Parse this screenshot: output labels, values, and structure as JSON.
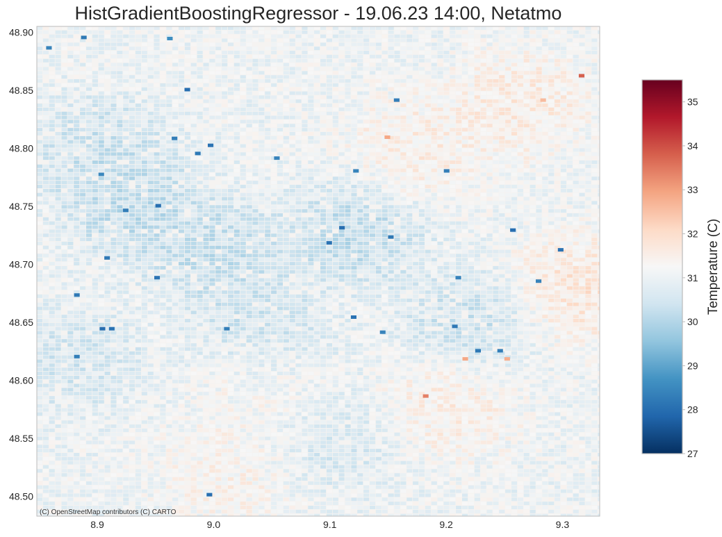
{
  "chart_data": {
    "type": "heatmap",
    "title": "HistGradientBoostingRegressor - 19.06.23 14:00, Netatmo",
    "xlabel": "",
    "ylabel": "",
    "xlim": [
      8.848,
      9.332
    ],
    "ylim": [
      48.483,
      48.905
    ],
    "x_ticks": [
      8.9,
      9.0,
      9.1,
      9.2,
      9.3
    ],
    "x_tick_labels": [
      "8.9",
      "9.0",
      "9.1",
      "9.2",
      "9.3"
    ],
    "y_ticks": [
      48.5,
      48.55,
      48.6,
      48.65,
      48.7,
      48.75,
      48.8,
      48.85,
      48.9
    ],
    "y_tick_labels": [
      "48.50",
      "48.55",
      "48.60",
      "48.65",
      "48.70",
      "48.75",
      "48.80",
      "48.85",
      "48.90"
    ],
    "grid_cell_deg": [
      0.0053,
      0.0035
    ],
    "value_range": [
      27,
      35.5
    ],
    "colormap": "RdBu_r",
    "colormap_stops": [
      "#053061",
      "#2166ac",
      "#4393c3",
      "#92c5de",
      "#d1e5f0",
      "#f7f7f7",
      "#fddbc7",
      "#f4a582",
      "#d6604d",
      "#b2182b",
      "#67001f"
    ],
    "background_value": 31,
    "regions": [
      {
        "name": "cool-west-north",
        "lon": 8.9,
        "lat": 48.8,
        "value": 30.2
      },
      {
        "name": "cool-west-mid",
        "lon": 8.93,
        "lat": 48.75,
        "value": 30.0
      },
      {
        "name": "cool-center-west",
        "lon": 9.0,
        "lat": 48.71,
        "value": 30.1
      },
      {
        "name": "cool-west-south",
        "lon": 8.88,
        "lat": 48.62,
        "value": 30.4
      },
      {
        "name": "cool-center",
        "lon": 9.12,
        "lat": 48.73,
        "value": 30.0
      },
      {
        "name": "cool-center-south",
        "lon": 9.04,
        "lat": 48.64,
        "value": 30.2
      },
      {
        "name": "cool-east-mid",
        "lon": 9.22,
        "lat": 48.65,
        "value": 30.2
      },
      {
        "name": "cool-south",
        "lon": 9.1,
        "lat": 48.55,
        "value": 30.5
      },
      {
        "name": "warm-east-north",
        "lon": 9.26,
        "lat": 48.84,
        "value": 31.8
      },
      {
        "name": "warm-east",
        "lon": 9.31,
        "lat": 48.68,
        "value": 32.0
      },
      {
        "name": "warm-center-north",
        "lon": 9.17,
        "lat": 48.8,
        "value": 31.7
      },
      {
        "name": "warm-valley",
        "lon": 9.04,
        "lat": 48.6,
        "value": 31.4
      },
      {
        "name": "warm-southeast",
        "lon": 9.2,
        "lat": 48.58,
        "value": 31.7
      },
      {
        "name": "warm-south",
        "lon": 9.01,
        "lat": 48.52,
        "value": 31.5
      }
    ],
    "hotspots": [
      {
        "lon": 8.886,
        "lat": 48.897,
        "value": 28.2
      },
      {
        "lon": 8.856,
        "lat": 48.888,
        "value": 28.4
      },
      {
        "lon": 8.96,
        "lat": 48.896,
        "value": 28.6
      },
      {
        "lon": 8.975,
        "lat": 48.852,
        "value": 28.0
      },
      {
        "lon": 8.964,
        "lat": 48.81,
        "value": 28.3
      },
      {
        "lon": 8.995,
        "lat": 48.804,
        "value": 28.1
      },
      {
        "lon": 8.984,
        "lat": 48.797,
        "value": 28.2
      },
      {
        "lon": 9.052,
        "lat": 48.793,
        "value": 28.4
      },
      {
        "lon": 8.901,
        "lat": 48.779,
        "value": 28.5
      },
      {
        "lon": 8.922,
        "lat": 48.748,
        "value": 28.3
      },
      {
        "lon": 8.95,
        "lat": 48.752,
        "value": 28.0
      },
      {
        "lon": 8.906,
        "lat": 48.707,
        "value": 28.2
      },
      {
        "lon": 8.949,
        "lat": 48.69,
        "value": 28.1
      },
      {
        "lon": 8.88,
        "lat": 48.675,
        "value": 28.2
      },
      {
        "lon": 8.902,
        "lat": 48.646,
        "value": 28.0
      },
      {
        "lon": 8.91,
        "lat": 48.646,
        "value": 28.1
      },
      {
        "lon": 9.009,
        "lat": 48.646,
        "value": 28.3
      },
      {
        "lon": 8.88,
        "lat": 48.622,
        "value": 28.3
      },
      {
        "lon": 9.108,
        "lat": 48.733,
        "value": 28.0
      },
      {
        "lon": 9.097,
        "lat": 48.72,
        "value": 28.1
      },
      {
        "lon": 9.118,
        "lat": 48.656,
        "value": 28.1
      },
      {
        "lon": 9.143,
        "lat": 48.643,
        "value": 28.4
      },
      {
        "lon": 9.15,
        "lat": 48.725,
        "value": 28.2
      },
      {
        "lon": 9.155,
        "lat": 48.843,
        "value": 28.3
      },
      {
        "lon": 9.12,
        "lat": 48.782,
        "value": 28.4
      },
      {
        "lon": 9.198,
        "lat": 48.782,
        "value": 28.3
      },
      {
        "lon": 9.208,
        "lat": 48.69,
        "value": 28.4
      },
      {
        "lon": 9.205,
        "lat": 48.648,
        "value": 28.2
      },
      {
        "lon": 9.225,
        "lat": 48.627,
        "value": 28.2
      },
      {
        "lon": 9.244,
        "lat": 48.627,
        "value": 28.3
      },
      {
        "lon": 9.255,
        "lat": 48.731,
        "value": 28.0
      },
      {
        "lon": 9.277,
        "lat": 48.687,
        "value": 28.4
      },
      {
        "lon": 9.296,
        "lat": 48.714,
        "value": 28.1
      },
      {
        "lon": 8.994,
        "lat": 48.503,
        "value": 28.0
      },
      {
        "lon": 9.25,
        "lat": 48.62,
        "value": 32.8
      },
      {
        "lon": 9.214,
        "lat": 48.62,
        "value": 32.9
      },
      {
        "lon": 9.18,
        "lat": 48.588,
        "value": 33.4
      },
      {
        "lon": 9.147,
        "lat": 48.811,
        "value": 32.9
      },
      {
        "lon": 9.281,
        "lat": 48.843,
        "value": 32.6
      },
      {
        "lon": 9.314,
        "lat": 48.864,
        "value": 33.8
      }
    ],
    "colorbar": {
      "label": "Temperature (C)",
      "ticks": [
        27,
        28,
        29,
        30,
        31,
        32,
        33,
        34,
        35
      ],
      "tick_labels": [
        "27",
        "28",
        "29",
        "30",
        "31",
        "32",
        "33",
        "34",
        "35"
      ],
      "range": [
        27,
        35.5
      ]
    },
    "attribution": "(C) OpenStreetMap contributors (C) CARTO"
  }
}
